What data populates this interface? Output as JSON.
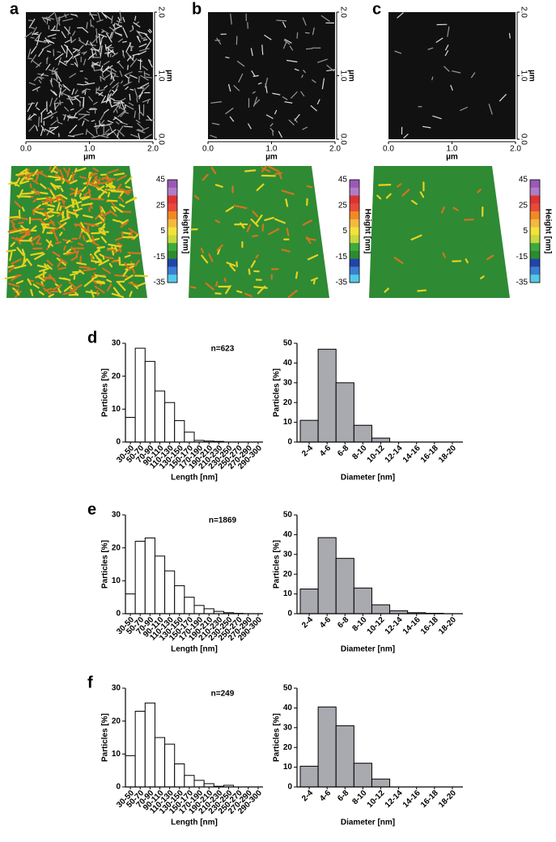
{
  "panels": [
    {
      "label": "a",
      "x_ticks": [
        "0.0",
        "1.0",
        "2.0"
      ],
      "x_unit": "µm",
      "y_ticks": [
        "0.0",
        "1.0",
        "2.0"
      ],
      "y_unit": "µm",
      "colorbar_ticks": [
        45,
        25,
        5,
        -15,
        -35
      ],
      "colorbar_label": "Height [nm]"
    },
    {
      "label": "b",
      "x_ticks": [
        "0.0",
        "1.0",
        "2.0"
      ],
      "x_unit": "µm",
      "y_ticks": [
        "0.0",
        "1.0",
        "2.0"
      ],
      "y_unit": "µm",
      "colorbar_ticks": [
        45,
        25,
        5,
        -15,
        -35
      ],
      "colorbar_label": "Height [nm]"
    },
    {
      "label": "c",
      "x_ticks": [
        "0.0",
        "1.0",
        "2.0"
      ],
      "x_unit": "µm",
      "y_ticks": [
        "0.0",
        "1.0",
        "2.0"
      ],
      "y_unit": "µm",
      "colorbar_ticks": [
        45,
        25,
        5,
        -15,
        -35
      ],
      "colorbar_label": "Height [nm]"
    }
  ],
  "chart_data": [
    {
      "type": "bar",
      "panel": "d",
      "annotation": "n=623",
      "x_label": "Length [nm]",
      "y_label": "Particles [%]",
      "categories": [
        "30-50",
        "50-70",
        "70-90",
        "90-110",
        "110-130",
        "130-150",
        "150-170",
        "170-190",
        "190-210",
        "210-230",
        "230-250",
        "250-270",
        "270-290",
        "290-300"
      ],
      "values": [
        7.5,
        28.5,
        24.5,
        15.5,
        12,
        6.5,
        3,
        0.5,
        0.3,
        0.2,
        0,
        0,
        0,
        0
      ],
      "color": "#ffffff",
      "ylim": [
        0,
        30
      ],
      "yticks": [
        0,
        10,
        20,
        30
      ]
    },
    {
      "type": "bar",
      "x_label": "Diameter [nm]",
      "y_label": "Particles [%]",
      "categories": [
        "2-4",
        "4-6",
        "6-8",
        "8-10",
        "10-12",
        "12-14",
        "14-16",
        "16-18",
        "18-20"
      ],
      "values": [
        11,
        47,
        30,
        8.5,
        2,
        0,
        0,
        0,
        0
      ],
      "color": "#a9a9b0",
      "ylim": [
        0,
        50
      ],
      "yticks": [
        0,
        10,
        20,
        30,
        40,
        50
      ]
    },
    {
      "type": "bar",
      "panel": "e",
      "annotation": "n=1869",
      "x_label": "Length [nm]",
      "y_label": "Particles [%]",
      "categories": [
        "30-50",
        "50-70",
        "70-90",
        "90-110",
        "110-130",
        "130-150",
        "150-170",
        "170-190",
        "190-210",
        "210-230",
        "230-250",
        "250-270",
        "270-290",
        "290-300"
      ],
      "values": [
        6,
        22,
        23,
        17.5,
        13,
        8.5,
        5,
        2.5,
        1.5,
        0.7,
        0.3,
        0.1,
        0,
        0
      ],
      "color": "#ffffff",
      "ylim": [
        0,
        30
      ],
      "yticks": [
        0,
        10,
        20,
        30
      ]
    },
    {
      "type": "bar",
      "x_label": "Diameter [nm]",
      "y_label": "Particles [%]",
      "categories": [
        "2-4",
        "4-6",
        "6-8",
        "8-10",
        "10-12",
        "12-14",
        "14-16",
        "16-18",
        "18-20"
      ],
      "values": [
        12.5,
        38.5,
        28,
        13,
        4.5,
        1.5,
        0.5,
        0.2,
        0
      ],
      "color": "#a9a9b0",
      "ylim": [
        0,
        50
      ],
      "yticks": [
        0,
        10,
        20,
        30,
        40,
        50
      ]
    },
    {
      "type": "bar",
      "panel": "f",
      "annotation": "n=249",
      "x_label": "Length [nm]",
      "y_label": "Particles [%]",
      "categories": [
        "30-50",
        "50-70",
        "70-90",
        "90-110",
        "110-130",
        "130-150",
        "150-170",
        "170-190",
        "190-210",
        "210-230",
        "230-250",
        "250-270",
        "270-290",
        "290-300"
      ],
      "values": [
        9.5,
        23,
        25.5,
        15,
        13,
        7,
        3.5,
        2,
        1,
        0.2,
        0.5,
        0,
        0,
        0
      ],
      "color": "#ffffff",
      "ylim": [
        0,
        30
      ],
      "yticks": [
        0,
        10,
        20,
        30
      ]
    },
    {
      "type": "bar",
      "x_label": "Diameter [nm]",
      "y_label": "Particles [%]",
      "categories": [
        "2-4",
        "4-6",
        "6-8",
        "8-10",
        "10-12",
        "12-14",
        "14-16",
        "16-18",
        "18-20"
      ],
      "values": [
        10.5,
        40.5,
        31,
        12,
        4,
        0,
        0,
        0,
        0
      ],
      "color": "#a9a9b0",
      "ylim": [
        0,
        50
      ],
      "yticks": [
        0,
        10,
        20,
        30,
        40,
        50
      ]
    }
  ]
}
